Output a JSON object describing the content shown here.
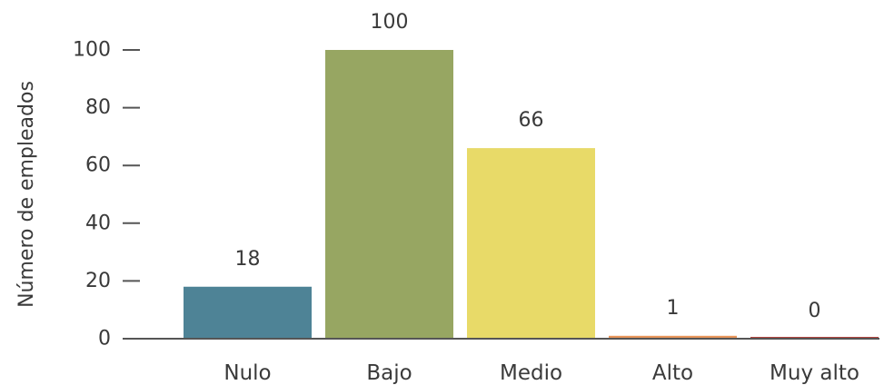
{
  "chart_data": {
    "type": "bar",
    "title": "",
    "xlabel": "",
    "ylabel": "Número de empleados",
    "categories": [
      "Nulo",
      "Bajo",
      "Medio",
      "Alto",
      "Muy alto"
    ],
    "values": [
      18,
      100,
      66,
      1,
      0
    ],
    "data_labels": [
      "18",
      "100",
      "66",
      "1",
      "0"
    ],
    "colors": [
      "#4e8396",
      "#97a662",
      "#e8da68",
      "#e8955a",
      "#b0453f"
    ],
    "ylim": [
      0,
      100
    ],
    "yticks": [
      0,
      20,
      40,
      60,
      80,
      100
    ],
    "grid": false,
    "legend": "none"
  }
}
